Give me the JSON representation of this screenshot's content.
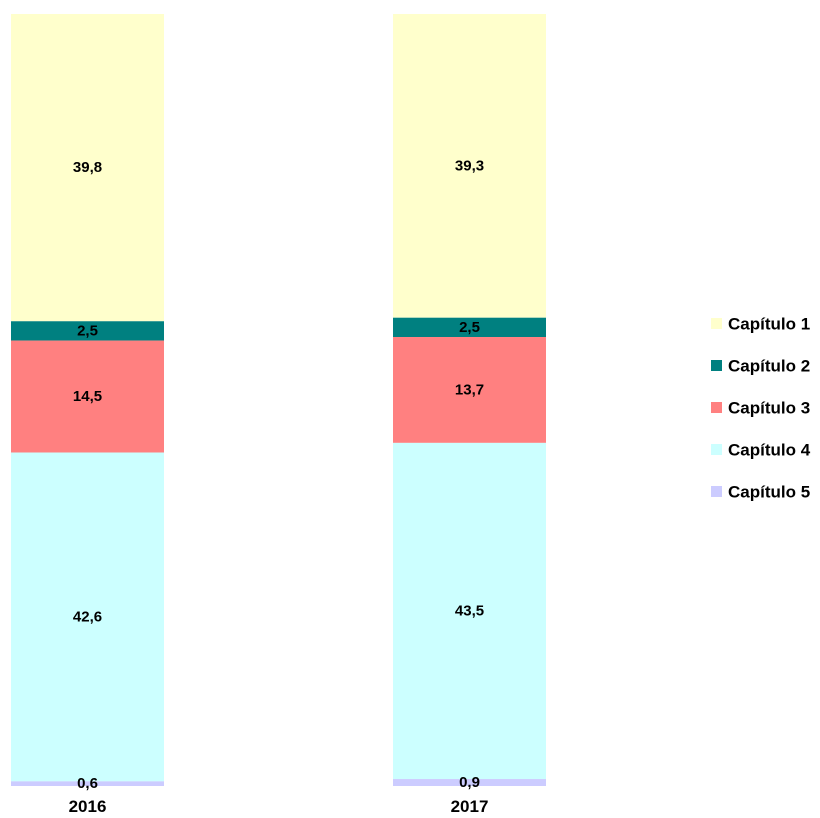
{
  "chart_data": {
    "type": "bar",
    "stacked": true,
    "percent_stacked": true,
    "categories": [
      "2016",
      "2017"
    ],
    "series": [
      {
        "name": "Capítulo 1",
        "color": "#FFFFCC",
        "values": [
          39.8,
          39.3
        ],
        "labels": [
          "39,8",
          "39,3"
        ]
      },
      {
        "name": "Capítulo 2",
        "color": "#008080",
        "values": [
          2.5,
          2.5
        ],
        "labels": [
          "2,5",
          "2,5"
        ]
      },
      {
        "name": "Capítulo 3",
        "color": "#FF8080",
        "values": [
          14.5,
          13.7
        ],
        "labels": [
          "14,5",
          "13,7"
        ]
      },
      {
        "name": "Capítulo 4",
        "color": "#CCFFFF",
        "values": [
          42.6,
          43.5
        ],
        "labels": [
          "42,6",
          "43,5"
        ]
      },
      {
        "name": "Capítulo 5",
        "color": "#CCCCFF",
        "values": [
          0.6,
          0.9
        ],
        "labels": [
          "0,6",
          "0,9"
        ]
      }
    ],
    "ylim": [
      0,
      100
    ],
    "grid": false,
    "legend": "right"
  }
}
